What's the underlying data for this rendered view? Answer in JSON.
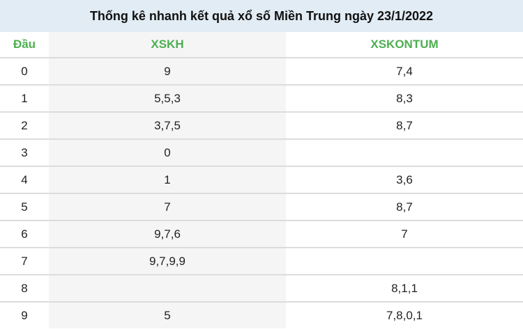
{
  "title": "Thống kê nhanh kết quả xổ số Miền Trung ngày 23/1/2022",
  "headers": [
    "Đầu",
    "XSKH",
    "XSKONTUM"
  ],
  "rows": [
    [
      "0",
      "9",
      "7,4"
    ],
    [
      "1",
      "5,5,3",
      "8,3"
    ],
    [
      "2",
      "3,7,5",
      "8,7"
    ],
    [
      "3",
      "0",
      ""
    ],
    [
      "4",
      "1",
      "3,6"
    ],
    [
      "5",
      "7",
      "8,7"
    ],
    [
      "6",
      "9,7,6",
      "7"
    ],
    [
      "7",
      "9,7,9,9",
      ""
    ],
    [
      "8",
      "",
      "8,1,1"
    ],
    [
      "9",
      "5",
      "7,8,0,1"
    ]
  ],
  "colors": {
    "header_bg": "#e1ecf4",
    "accent": "#4caf50"
  }
}
